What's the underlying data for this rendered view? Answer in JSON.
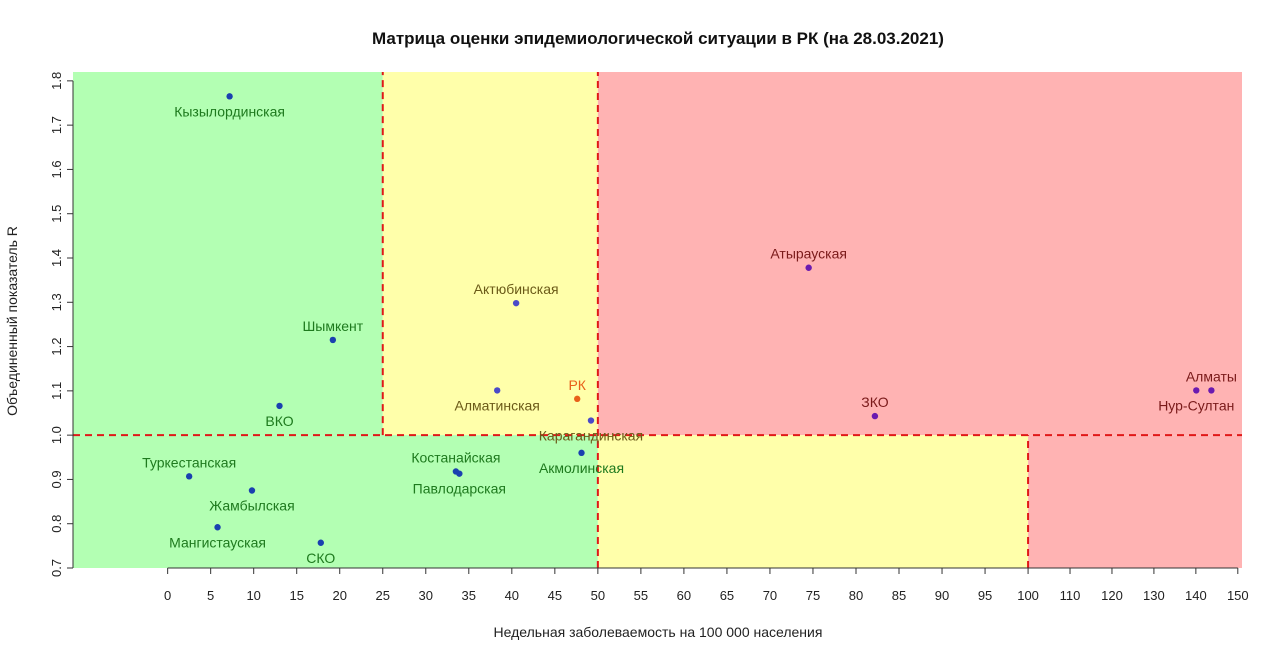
{
  "chart_data": {
    "type": "scatter",
    "title": "Матрица оценки эпидемиологической ситуации в РК (на 28.03.2021)",
    "xlabel": "Недельная заболеваемость на 100 000 населения",
    "ylabel": "Объединенный показатель R",
    "xlim": [
      -11,
      151
    ],
    "ylim": [
      0.7,
      1.82
    ],
    "x_scale_breaks": [
      [
        -11,
        0.0
      ],
      [
        100,
        0.817
      ],
      [
        151,
        1.0
      ]
    ],
    "x_ticks": [
      0,
      5,
      10,
      15,
      20,
      25,
      30,
      35,
      40,
      45,
      50,
      55,
      60,
      65,
      70,
      75,
      80,
      85,
      90,
      95,
      100,
      110,
      120,
      130,
      140,
      150
    ],
    "y_ticks": [
      0.7,
      0.8,
      0.9,
      1.0,
      1.1,
      1.2,
      1.3,
      1.4,
      1.5,
      1.6,
      1.7,
      1.8
    ],
    "zones": [
      {
        "x": [
          -11,
          25
        ],
        "y": [
          1.0,
          1.82
        ],
        "color": "#b3ffb3"
      },
      {
        "x": [
          25,
          50
        ],
        "y": [
          1.0,
          1.82
        ],
        "color": "#ffffaa"
      },
      {
        "x": [
          50,
          151
        ],
        "y": [
          1.0,
          1.82
        ],
        "color": "#ffb3b3"
      },
      {
        "x": [
          -11,
          50
        ],
        "y": [
          0.7,
          1.0
        ],
        "color": "#b3ffb3"
      },
      {
        "x": [
          50,
          100
        ],
        "y": [
          0.7,
          1.0
        ],
        "color": "#ffffaa"
      },
      {
        "x": [
          100,
          151
        ],
        "y": [
          0.7,
          1.0
        ],
        "color": "#ffb3b3"
      }
    ],
    "threshold_lines": [
      {
        "orientation": "vertical",
        "x": 25,
        "y": [
          1.0,
          1.82
        ]
      },
      {
        "orientation": "vertical",
        "x": 50,
        "y": [
          0.7,
          1.82
        ]
      },
      {
        "orientation": "vertical",
        "x": 100,
        "y": [
          0.7,
          1.0
        ]
      },
      {
        "orientation": "horizontal",
        "y": 1.0,
        "x": [
          -11,
          151
        ]
      }
    ],
    "points": [
      {
        "label": "Кызылординская",
        "x": 7.2,
        "y": 1.765,
        "color": "#1a40b0",
        "label_color": "#1e7a1e",
        "label_pos": "below"
      },
      {
        "label": "Шымкент",
        "x": 19.2,
        "y": 1.215,
        "color": "#1a40b0",
        "label_color": "#1e7a1e",
        "label_pos": "above"
      },
      {
        "label": "ВКО",
        "x": 13.0,
        "y": 1.066,
        "color": "#1a40b0",
        "label_color": "#1e7a1e",
        "label_pos": "below"
      },
      {
        "label": "Туркестанская",
        "x": 2.5,
        "y": 0.907,
        "color": "#1a40b0",
        "label_color": "#1e7a1e",
        "label_pos": "above"
      },
      {
        "label": "Жамбылская",
        "x": 9.8,
        "y": 0.875,
        "color": "#1a40b0",
        "label_color": "#1e7a1e",
        "label_pos": "below"
      },
      {
        "label": "Мангистауская",
        "x": 5.8,
        "y": 0.792,
        "color": "#1a40b0",
        "label_color": "#1e7a1e",
        "label_pos": "below"
      },
      {
        "label": "СКО",
        "x": 17.8,
        "y": 0.757,
        "color": "#1a40b0",
        "label_color": "#1e7a1e",
        "label_pos": "below"
      },
      {
        "label": "Костанайская",
        "x": 33.5,
        "y": 0.918,
        "color": "#1a40b0",
        "label_color": "#1e7a1e",
        "label_pos": "above"
      },
      {
        "label": "Павлодарская",
        "x": 33.9,
        "y": 0.913,
        "color": "#1a40b0",
        "label_color": "#1e7a1e",
        "label_pos": "below"
      },
      {
        "label": "Акмолинская",
        "x": 48.1,
        "y": 0.96,
        "color": "#1a40b0",
        "label_color": "#1e7a1e",
        "label_pos": "below"
      },
      {
        "label": "Актюбинская",
        "x": 40.5,
        "y": 1.298,
        "color": "#4b4bc8",
        "label_color": "#6b5a18",
        "label_pos": "above"
      },
      {
        "label": "Алматинская",
        "x": 38.3,
        "y": 1.101,
        "color": "#4b4bc8",
        "label_color": "#6b5a18",
        "label_pos": "below"
      },
      {
        "label": "Карагандинская",
        "x": 49.2,
        "y": 1.033,
        "color": "#4b4bc8",
        "label_color": "#6b5a18",
        "label_pos": "below"
      },
      {
        "label": "РК",
        "x": 47.6,
        "y": 1.082,
        "color": "#e8601a",
        "label_color": "#e8601a",
        "label_pos": "above"
      },
      {
        "label": "Атырауская",
        "x": 74.5,
        "y": 1.378,
        "color": "#6a1ab0",
        "label_color": "#7a1a1a",
        "label_pos": "above"
      },
      {
        "label": "ЗКО",
        "x": 82.2,
        "y": 1.043,
        "color": "#6a1ab0",
        "label_color": "#7a1a1a",
        "label_pos": "above"
      },
      {
        "label": "Алматы",
        "x": 143.7,
        "y": 1.101,
        "color": "#6a1ab0",
        "label_color": "#7a1a1a",
        "label_pos": "above"
      },
      {
        "label": "Нур-Султан",
        "x": 140.1,
        "y": 1.101,
        "color": "#6a1ab0",
        "label_color": "#7a1a1a",
        "label_pos": "below"
      }
    ]
  }
}
